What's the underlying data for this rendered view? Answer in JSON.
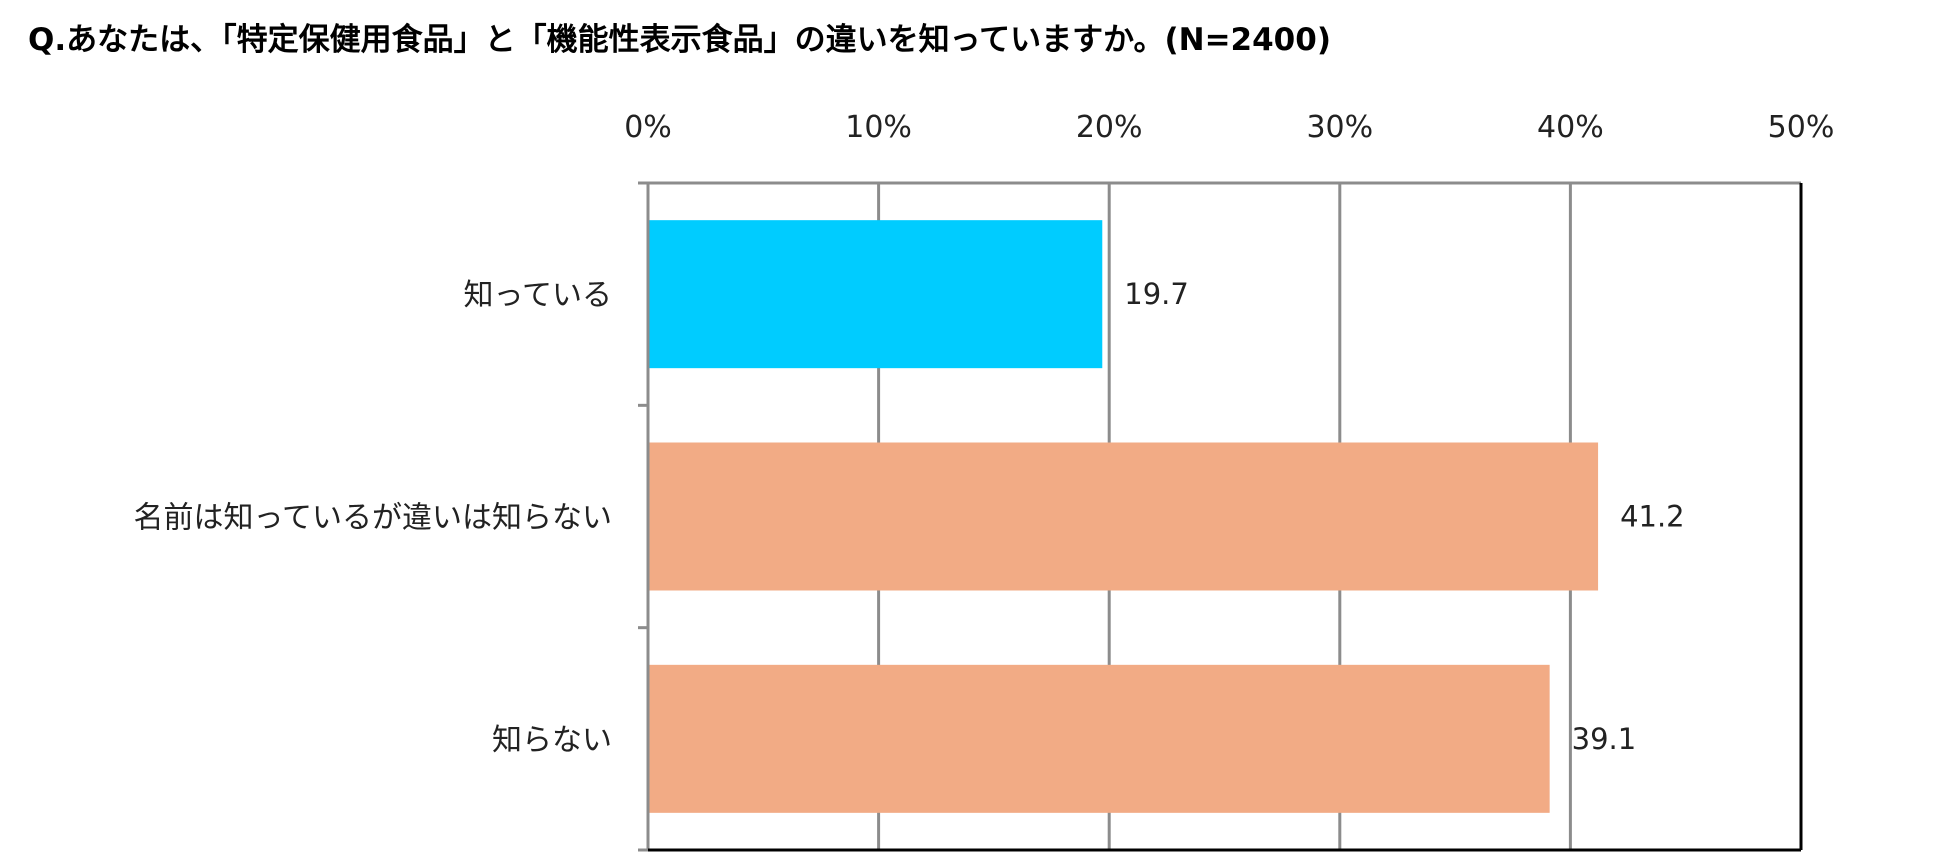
{
  "chart_data": {
    "type": "bar",
    "orientation": "horizontal",
    "title": "Q.あなたは、「特定保健用食品」と「機能性表示食品」の違いを知っていますか。(N=2400)",
    "categories": [
      "知っている",
      "名前は知っているが違いは知らない",
      "知らない"
    ],
    "values": [
      19.7,
      41.2,
      39.1
    ],
    "data_labels": [
      "19.7",
      "41.2",
      "39.1"
    ],
    "xlim": [
      0,
      50
    ],
    "x_ticks": [
      0,
      10,
      20,
      30,
      40,
      50
    ],
    "x_tick_labels": [
      "0%",
      "10%",
      "20%",
      "30%",
      "40%",
      "50%"
    ],
    "x_axis_position": "top",
    "grid": true,
    "legend": "none",
    "colors": [
      "#00ccff",
      "#f2ab85",
      "#f2ab85"
    ],
    "grid_color": "#8c8c8c",
    "frame_color": "#000000"
  }
}
